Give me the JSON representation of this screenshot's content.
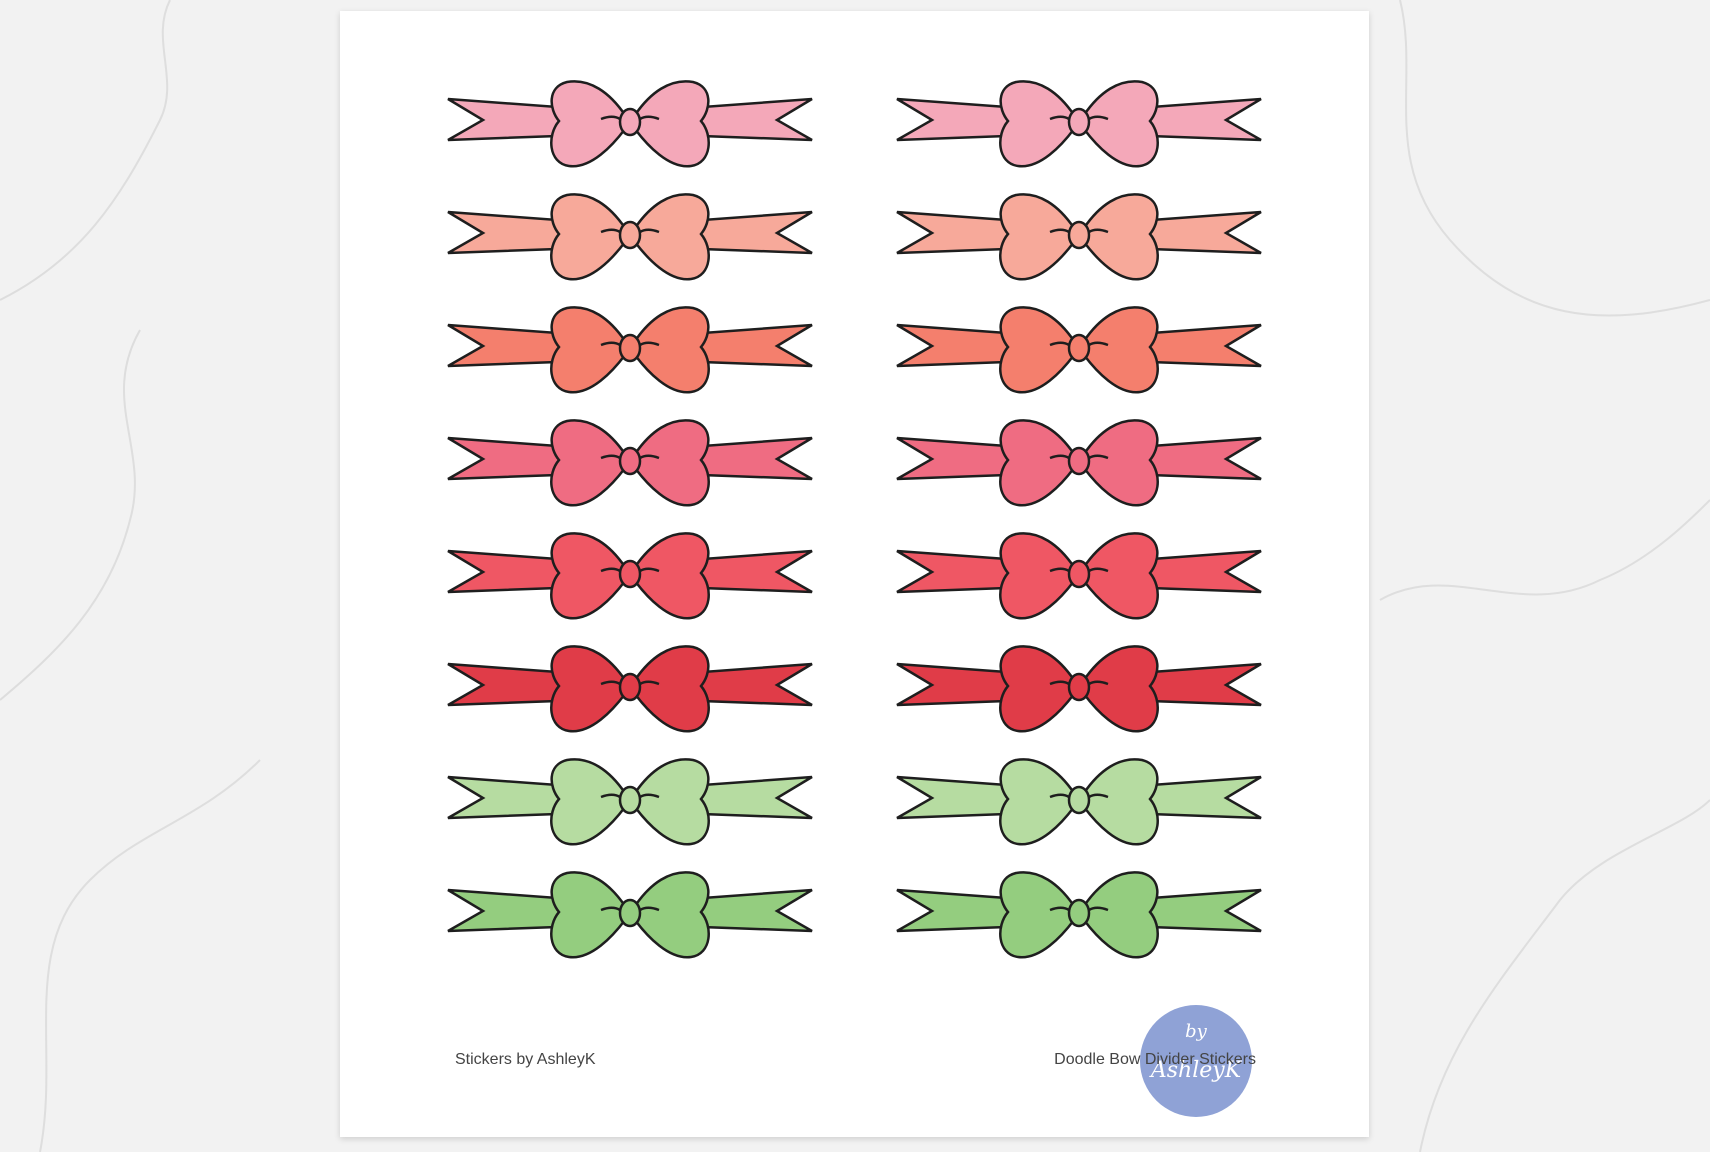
{
  "sheet": {
    "bow_colors": [
      "#f4a8b9",
      "#f7a99a",
      "#f47f6d",
      "#ef6c82",
      "#ef5764",
      "#e03c48",
      "#b6dca1",
      "#94cd7f"
    ],
    "columns": 2,
    "outline_color": "#1e1e1e"
  },
  "footer": {
    "left_text": "Stickers by AshleyK",
    "right_text": "Doodle Bow Divider  Stickers",
    "logo_line1": "by",
    "logo_line2": "AshleyK",
    "logo_color": "#8fa2d6"
  }
}
